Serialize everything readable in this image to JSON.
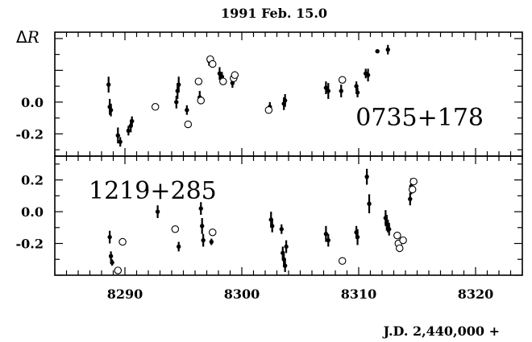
{
  "chart_data": {
    "type": "scatter",
    "title": "1991 Feb. 15.0",
    "ylabel": "ΔR",
    "xlabel": "J.D. 2,440,000 +",
    "xlim": [
      8284,
      8324
    ],
    "x_ticks": [
      8290,
      8300,
      8310,
      8320
    ],
    "panels": [
      {
        "object": "0735+178",
        "ylim": [
          -0.34,
          0.44
        ],
        "y_ticks": [
          -0.2,
          0.0
        ],
        "y_tick_labels": [
          "-0.2",
          "0.0"
        ],
        "series": [
          {
            "marker": "filled circle with error bar",
            "points": [
              {
                "x": 8288.6,
                "y": 0.11,
                "err": 0.05
              },
              {
                "x": 8288.7,
                "y": -0.03,
                "err": 0.05
              },
              {
                "x": 8288.8,
                "y": -0.05,
                "err": 0.04
              },
              {
                "x": 8289.4,
                "y": -0.21,
                "err": 0.05
              },
              {
                "x": 8289.6,
                "y": -0.25,
                "err": 0.03
              },
              {
                "x": 8290.3,
                "y": -0.18,
                "err": 0.03
              },
              {
                "x": 8290.5,
                "y": -0.15,
                "err": 0.04
              },
              {
                "x": 8290.6,
                "y": -0.12,
                "err": 0.03
              },
              {
                "x": 8294.4,
                "y": 0.0,
                "err": 0.04
              },
              {
                "x": 8294.5,
                "y": 0.07,
                "err": 0.05
              },
              {
                "x": 8294.6,
                "y": 0.11,
                "err": 0.05
              },
              {
                "x": 8295.3,
                "y": -0.05,
                "err": 0.03
              },
              {
                "x": 8296.4,
                "y": 0.03,
                "err": 0.04
              },
              {
                "x": 8297.2,
                "y": 0.26,
                "err": 0.03
              },
              {
                "x": 8298.1,
                "y": 0.18,
                "err": 0.04
              },
              {
                "x": 8298.3,
                "y": 0.16,
                "err": 0.03
              },
              {
                "x": 8299.2,
                "y": 0.12,
                "err": 0.03
              },
              {
                "x": 8302.4,
                "y": -0.03,
                "err": 0.03
              },
              {
                "x": 8303.6,
                "y": -0.01,
                "err": 0.04
              },
              {
                "x": 8303.7,
                "y": 0.01,
                "err": 0.04
              },
              {
                "x": 8307.2,
                "y": 0.09,
                "err": 0.04
              },
              {
                "x": 8307.4,
                "y": 0.07,
                "err": 0.05
              },
              {
                "x": 8308.5,
                "y": 0.07,
                "err": 0.04
              },
              {
                "x": 8309.8,
                "y": 0.1,
                "err": 0.03
              },
              {
                "x": 8309.9,
                "y": 0.06,
                "err": 0.03
              },
              {
                "x": 8310.6,
                "y": 0.18,
                "err": 0.03
              },
              {
                "x": 8310.8,
                "y": 0.17,
                "err": 0.04
              },
              {
                "x": 8311.6,
                "y": 0.32,
                "err": 0.01
              },
              {
                "x": 8312.5,
                "y": 0.33,
                "err": 0.03
              }
            ]
          },
          {
            "marker": "open circle",
            "points": [
              {
                "x": 8292.6,
                "y": -0.03
              },
              {
                "x": 8295.4,
                "y": -0.14
              },
              {
                "x": 8296.3,
                "y": 0.13
              },
              {
                "x": 8296.5,
                "y": 0.01
              },
              {
                "x": 8297.3,
                "y": 0.27
              },
              {
                "x": 8297.5,
                "y": 0.24
              },
              {
                "x": 8298.4,
                "y": 0.13
              },
              {
                "x": 8299.3,
                "y": 0.15
              },
              {
                "x": 8299.4,
                "y": 0.17
              },
              {
                "x": 8302.3,
                "y": -0.05
              },
              {
                "x": 8308.6,
                "y": 0.14
              }
            ]
          }
        ]
      },
      {
        "object": "1219+285",
        "ylim": [
          -0.4,
          0.35
        ],
        "y_ticks": [
          -0.2,
          0.0,
          0.2
        ],
        "y_tick_labels": [
          "-0.2",
          "0.0",
          "0.2"
        ],
        "series": [
          {
            "marker": "filled circle with error bar",
            "points": [
              {
                "x": 8288.7,
                "y": -0.16,
                "err": 0.04
              },
              {
                "x": 8288.8,
                "y": -0.28,
                "err": 0.03
              },
              {
                "x": 8288.9,
                "y": -0.32,
                "err": 0.02
              },
              {
                "x": 8292.8,
                "y": 0.0,
                "err": 0.04
              },
              {
                "x": 8294.6,
                "y": -0.22,
                "err": 0.03
              },
              {
                "x": 8296.5,
                "y": 0.02,
                "err": 0.04
              },
              {
                "x": 8296.6,
                "y": -0.09,
                "err": 0.05
              },
              {
                "x": 8296.7,
                "y": -0.18,
                "err": 0.04
              },
              {
                "x": 8297.4,
                "y": -0.19,
                "err": 0.02
              },
              {
                "x": 8302.5,
                "y": -0.05,
                "err": 0.05
              },
              {
                "x": 8302.6,
                "y": -0.09,
                "err": 0.04
              },
              {
                "x": 8303.4,
                "y": -0.11,
                "err": 0.03
              },
              {
                "x": 8303.5,
                "y": -0.26,
                "err": 0.04
              },
              {
                "x": 8303.6,
                "y": -0.3,
                "err": 0.05
              },
              {
                "x": 8303.7,
                "y": -0.34,
                "err": 0.04
              },
              {
                "x": 8303.8,
                "y": -0.22,
                "err": 0.04
              },
              {
                "x": 8307.2,
                "y": -0.14,
                "err": 0.05
              },
              {
                "x": 8307.4,
                "y": -0.18,
                "err": 0.04
              },
              {
                "x": 8309.8,
                "y": -0.13,
                "err": 0.04
              },
              {
                "x": 8309.9,
                "y": -0.16,
                "err": 0.05
              },
              {
                "x": 8310.7,
                "y": 0.22,
                "err": 0.05
              },
              {
                "x": 8310.9,
                "y": 0.05,
                "err": 0.06
              },
              {
                "x": 8312.3,
                "y": -0.04,
                "err": 0.05
              },
              {
                "x": 8312.4,
                "y": -0.07,
                "err": 0.05
              },
              {
                "x": 8312.5,
                "y": -0.09,
                "err": 0.04
              },
              {
                "x": 8312.6,
                "y": -0.11,
                "err": 0.04
              },
              {
                "x": 8314.4,
                "y": 0.08,
                "err": 0.04
              },
              {
                "x": 8314.5,
                "y": 0.16,
                "err": 0.05
              }
            ]
          },
          {
            "marker": "open circle",
            "points": [
              {
                "x": 8289.4,
                "y": -0.37
              },
              {
                "x": 8289.8,
                "y": -0.19
              },
              {
                "x": 8294.3,
                "y": -0.11
              },
              {
                "x": 8297.5,
                "y": -0.13
              },
              {
                "x": 8308.6,
                "y": -0.31
              },
              {
                "x": 8313.3,
                "y": -0.15
              },
              {
                "x": 8313.4,
                "y": -0.2
              },
              {
                "x": 8313.5,
                "y": -0.23
              },
              {
                "x": 8313.8,
                "y": -0.18
              },
              {
                "x": 8314.6,
                "y": 0.14
              },
              {
                "x": 8314.7,
                "y": 0.19
              }
            ]
          }
        ]
      }
    ]
  }
}
